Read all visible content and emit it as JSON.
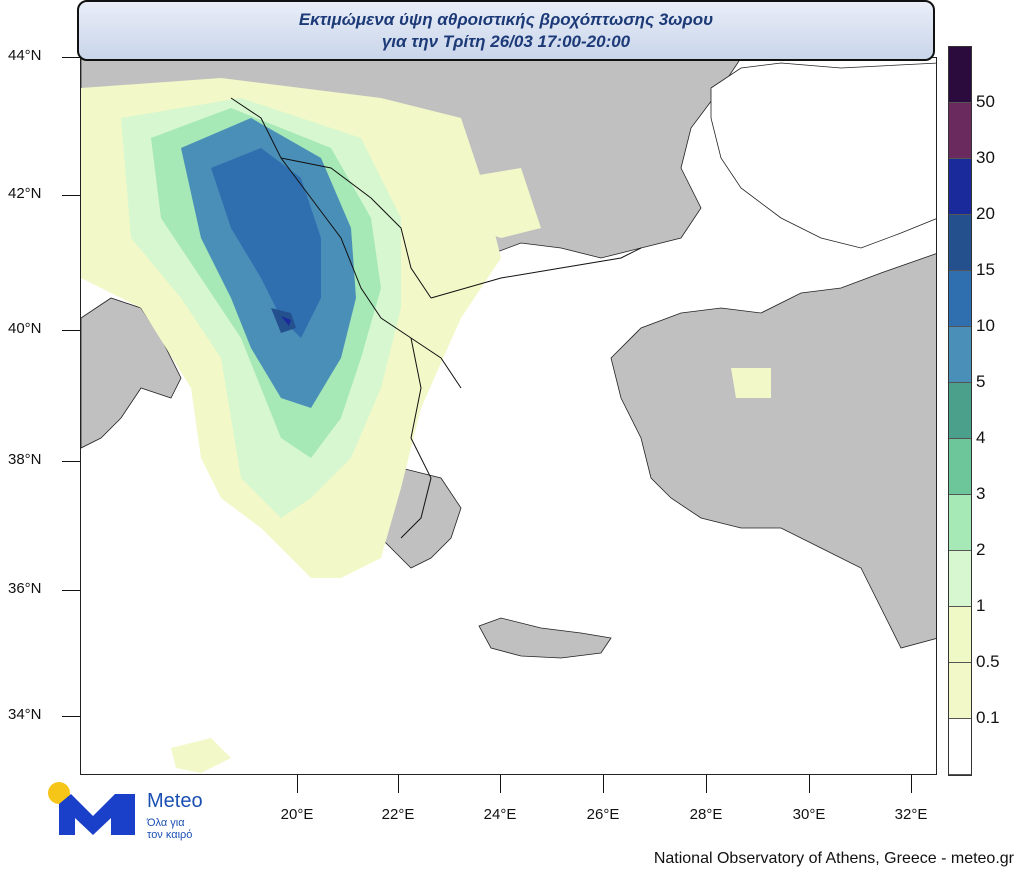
{
  "title": {
    "line1": "Εκτιμώμενα ύψη αθροιστικής βροχόπτωσης 3ωρου",
    "line2": "για την Τρίτη 26/03 17:00-20:00"
  },
  "latitude_labels": [
    "44°N",
    "42°N",
    "40°N",
    "38°N",
    "36°N",
    "34°N"
  ],
  "longitude_labels": [
    "20°E",
    "22°E",
    "24°E",
    "26°E",
    "28°E",
    "30°E",
    "32°E"
  ],
  "colorbar": {
    "labels": [
      "50",
      "30",
      "20",
      "15",
      "10",
      "5",
      "4",
      "3",
      "2",
      "1",
      "0.5",
      "0.1"
    ],
    "colors": [
      "#2b0a3d",
      "#6b2a5e",
      "#1a2a9a",
      "#24508e",
      "#2f6fb0",
      "#4a8fb8",
      "#4aa08a",
      "#6dc69a",
      "#a6e8b6",
      "#d6f7cf",
      "#eef9c6",
      "#f3f8c8",
      "#ffffff"
    ]
  },
  "map_colors": {
    "sea": "#ffffff",
    "land": "#c0c0c0",
    "border": "#111111"
  },
  "logo": {
    "name": "Meteo",
    "tagline_line1": "Όλα για",
    "tagline_line2": "τον καιρό"
  },
  "credit": "National Observatory of Athens, Greece - meteo.gr"
}
